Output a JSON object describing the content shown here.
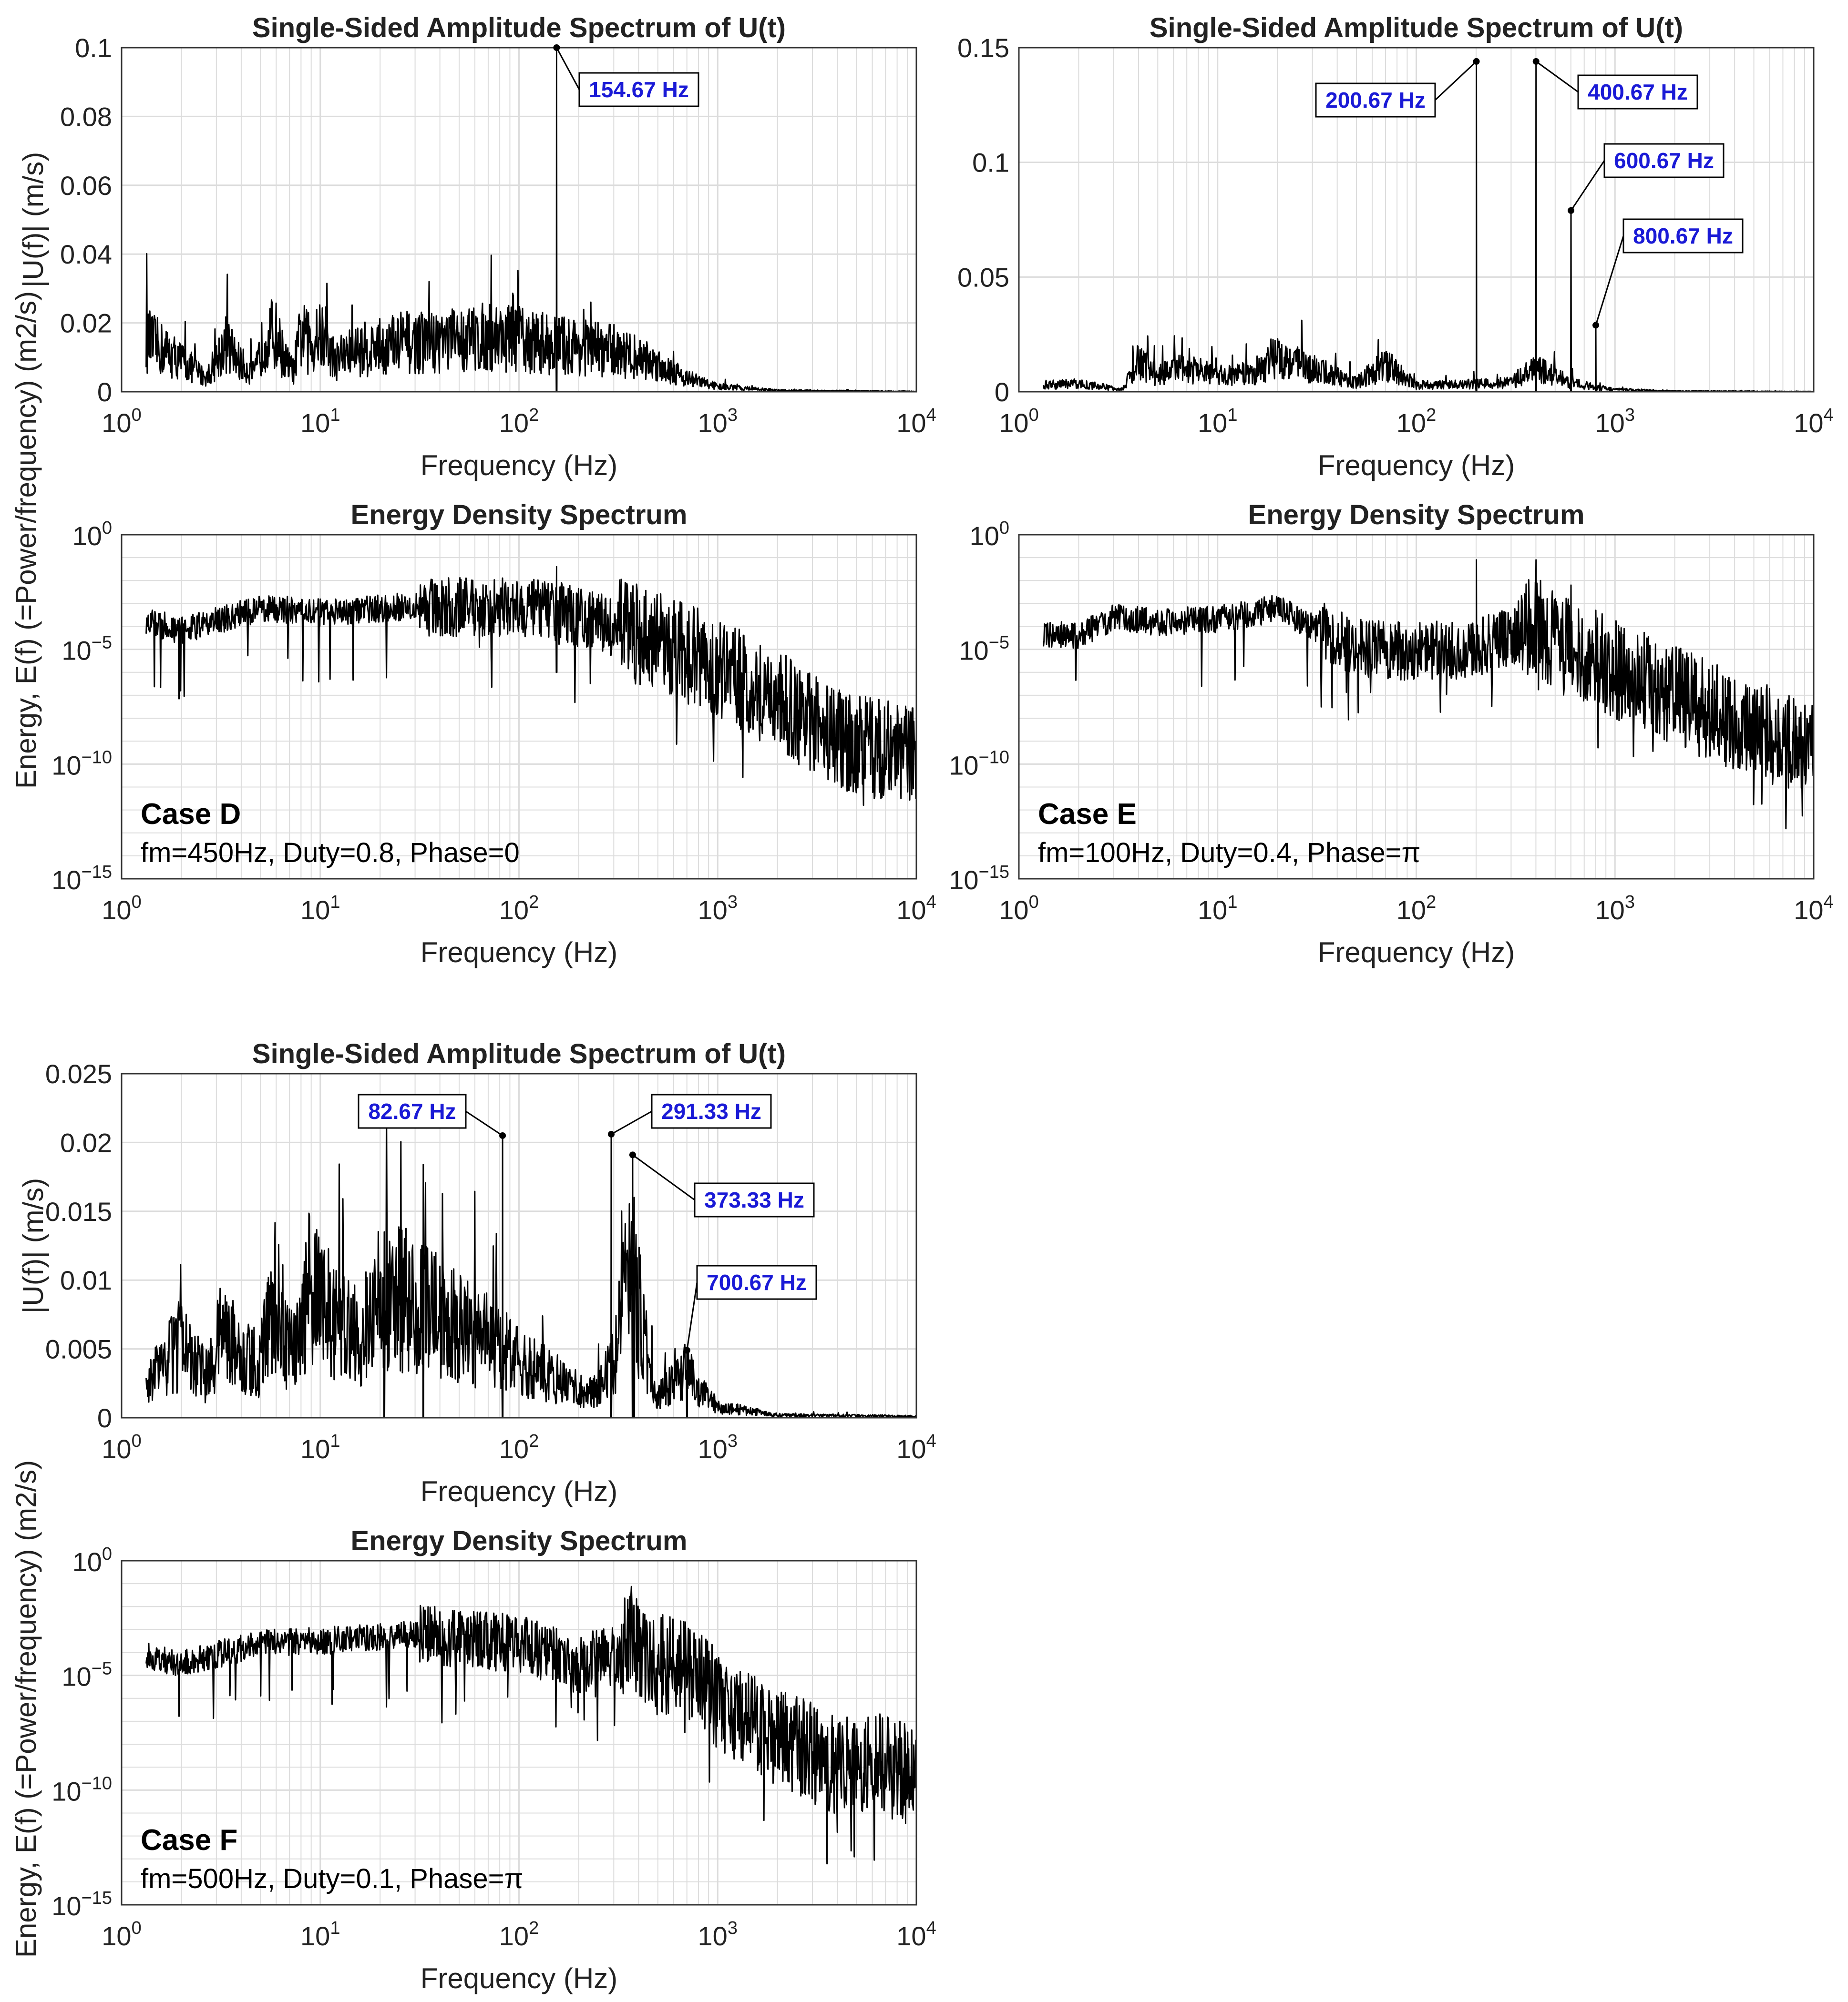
{
  "colors": {
    "trace": "#000000",
    "grid": "#dcdcdc",
    "annotation_text": "#1a1ad6",
    "axes": "#333333"
  },
  "chart_data": [
    {
      "id": "D-amp",
      "type": "line",
      "scale": "semilogx",
      "title": "Single-Sided Amplitude Spectrum of U(t)",
      "xlabel": "Frequency (Hz)",
      "ylabel": "|U(f)| (m/s)",
      "xlim": [
        1,
        10000
      ],
      "ylim": [
        0,
        0.1
      ],
      "yticks": [
        "0",
        "0.02",
        "0.04",
        "0.06",
        "0.08",
        "0.1"
      ],
      "xticks": [
        "10^0",
        "10^1",
        "10^2",
        "10^3",
        "10^4"
      ],
      "series": [
        {
          "name": "|U(f)|",
          "profile": [
            [
              1.33,
              0.015
            ],
            [
              2,
              0.009
            ],
            [
              2.67,
              0.004
            ],
            [
              3.33,
              0.014
            ],
            [
              4,
              0.008
            ],
            [
              4.67,
              0.005
            ],
            [
              5.33,
              0.017
            ],
            [
              6,
              0.016
            ],
            [
              6.67,
              0.009
            ],
            [
              7.33,
              0.006
            ],
            [
              8,
              0.017
            ],
            [
              9,
              0.013
            ],
            [
              10,
              0.016
            ],
            [
              12,
              0.009
            ],
            [
              15,
              0.012
            ],
            [
              20,
              0.013
            ],
            [
              30,
              0.014
            ],
            [
              50,
              0.015
            ],
            [
              80,
              0.016
            ],
            [
              100,
              0.015
            ],
            [
              140,
              0.014
            ],
            [
              200,
              0.013
            ],
            [
              300,
              0.012
            ],
            [
              500,
              0.008
            ],
            [
              700,
              0.004
            ],
            [
              1000,
              0.0015
            ],
            [
              2000,
              0.0004
            ],
            [
              10000,
              0.0001
            ]
          ]
        }
      ],
      "peaks": [
        {
          "freq": 154.67,
          "amp": 0.1
        }
      ],
      "annotations": [
        {
          "label": "154.67 Hz",
          "freq": 154.67,
          "value": 0.1
        }
      ]
    },
    {
      "id": "E-amp",
      "type": "line",
      "scale": "semilogx",
      "title": "Single-Sided Amplitude Spectrum of U(t)",
      "xlabel": "Frequency (Hz)",
      "ylabel": "",
      "xlim": [
        1,
        10000
      ],
      "ylim": [
        0,
        0.15
      ],
      "yticks": [
        "0",
        "0.05",
        "0.1",
        "0.15"
      ],
      "xticks": [
        "10^0",
        "10^1",
        "10^2",
        "10^3",
        "10^4"
      ],
      "series": [
        {
          "name": "|U(f)|",
          "profile": [
            [
              1.33,
              0.003
            ],
            [
              2,
              0.0035
            ],
            [
              3.33,
              0.001
            ],
            [
              4,
              0.013
            ],
            [
              5,
              0.007
            ],
            [
              6,
              0.01
            ],
            [
              8,
              0.009
            ],
            [
              10,
              0.007
            ],
            [
              15,
              0.008
            ],
            [
              20,
              0.016
            ],
            [
              30,
              0.01
            ],
            [
              50,
              0.004
            ],
            [
              70,
              0.012
            ],
            [
              100,
              0.003
            ],
            [
              150,
              0.003
            ],
            [
              300,
              0.004
            ],
            [
              400,
              0.01
            ],
            [
              600,
              0.004
            ],
            [
              800,
              0.002
            ],
            [
              1000,
              0.001
            ],
            [
              2000,
              0.0003
            ],
            [
              10000,
              0.0001
            ]
          ]
        }
      ],
      "peaks": [
        {
          "freq": 200.67,
          "amp": 0.144
        },
        {
          "freq": 400.67,
          "amp": 0.144
        },
        {
          "freq": 600.67,
          "amp": 0.079
        },
        {
          "freq": 800.67,
          "amp": 0.029
        }
      ],
      "annotations": [
        {
          "label": "200.67 Hz",
          "freq": 200.67,
          "value": 0.144
        },
        {
          "label": "400.67 Hz",
          "freq": 400.67,
          "value": 0.144
        },
        {
          "label": "600.67 Hz",
          "freq": 600.67,
          "value": 0.079
        },
        {
          "label": "800.67 Hz",
          "freq": 800.67,
          "value": 0.029
        }
      ]
    },
    {
      "id": "D-eng",
      "type": "line",
      "scale": "loglog",
      "title": "Energy Density Spectrum",
      "xlabel": "Frequency (Hz)",
      "ylabel": "Energy, E(f) (=Power/frequency) (m2/s)",
      "xlim": [
        1,
        10000
      ],
      "ylim_log10": [
        -15,
        0
      ],
      "yticks": [
        "10^-15",
        "10^-10",
        "10^-5",
        "10^0"
      ],
      "xticks": [
        "10^0",
        "10^1",
        "10^2",
        "10^3",
        "10^4"
      ],
      "series": [
        {
          "name": "E(f)",
          "profile_log10": [
            [
              1,
              -3.4
            ],
            [
              2,
              -4.2
            ],
            [
              5,
              -3.2
            ],
            [
              10,
              -3.4
            ],
            [
              30,
              -3.1
            ],
            [
              100,
              -3.2
            ],
            [
              150,
              -3.3
            ],
            [
              200,
              -3.6
            ],
            [
              500,
              -4.6
            ],
            [
              1000,
              -5.8
            ],
            [
              2000,
              -7.2
            ],
            [
              3000,
              -8.3
            ],
            [
              5000,
              -9.2
            ],
            [
              10000,
              -9.6
            ]
          ]
        }
      ],
      "peaks": [
        {
          "freq": 154.67,
          "log10": -1.4
        }
      ],
      "case_label": "Case D",
      "case_info": "fm=450Hz, Duty=0.8, Phase=0"
    },
    {
      "id": "E-eng",
      "type": "line",
      "scale": "loglog",
      "title": "Energy Density Spectrum",
      "xlabel": "Frequency (Hz)",
      "ylabel": "",
      "xlim": [
        1,
        10000
      ],
      "ylim_log10": [
        -15,
        0
      ],
      "yticks": [
        "10^-15",
        "10^-10",
        "10^-5",
        "10^0"
      ],
      "xticks": [
        "10^0",
        "10^1",
        "10^2",
        "10^3",
        "10^4"
      ],
      "series": [
        {
          "name": "E(f)",
          "profile_log10": [
            [
              1,
              -4.3
            ],
            [
              2,
              -4.4
            ],
            [
              3,
              -3.6
            ],
            [
              5,
              -3.8
            ],
            [
              10,
              -3.7
            ],
            [
              20,
              -3.2
            ],
            [
              30,
              -4.0
            ],
            [
              50,
              -4.9
            ],
            [
              100,
              -5.1
            ],
            [
              200,
              -5.0
            ],
            [
              400,
              -4.0
            ],
            [
              600,
              -5.0
            ],
            [
              1000,
              -5.9
            ],
            [
              2000,
              -7.0
            ],
            [
              5000,
              -8.6
            ],
            [
              10000,
              -9.2
            ]
          ]
        }
      ],
      "peaks": [
        {
          "freq": 200.67,
          "log10": -1.1
        },
        {
          "freq": 400.67,
          "log10": -1.1
        },
        {
          "freq": 600.67,
          "log10": -2.2
        },
        {
          "freq": 800.67,
          "log10": -3.3
        }
      ],
      "case_label": "Case E",
      "case_info": "fm=100Hz, Duty=0.4, Phase=π"
    },
    {
      "id": "F-amp",
      "type": "line",
      "scale": "semilogx",
      "title": "Single-Sided Amplitude Spectrum of U(t)",
      "xlabel": "Frequency (Hz)",
      "ylabel": "|U(f)| (m/s)",
      "xlim": [
        1,
        10000
      ],
      "ylim": [
        0,
        0.025
      ],
      "yticks": [
        "0",
        "0.005",
        "0.01",
        "0.015",
        "0.02",
        "0.025"
      ],
      "xticks": [
        "10^0",
        "10^1",
        "10^2",
        "10^3",
        "10^4"
      ],
      "series": [
        {
          "name": "|U(f)|",
          "profile": [
            [
              1.33,
              0.0023
            ],
            [
              2,
              0.0054
            ],
            [
              2.67,
              0.003
            ],
            [
              3.33,
              0.0068
            ],
            [
              4,
              0.0045
            ],
            [
              5,
              0.004
            ],
            [
              6,
              0.009
            ],
            [
              7,
              0.005
            ],
            [
              8,
              0.006
            ],
            [
              9,
              0.01
            ],
            [
              10,
              0.008
            ],
            [
              15,
              0.006
            ],
            [
              20,
              0.008
            ],
            [
              30,
              0.009
            ],
            [
              40,
              0.007
            ],
            [
              60,
              0.006
            ],
            [
              80,
              0.005
            ],
            [
              100,
              0.004
            ],
            [
              150,
              0.003
            ],
            [
              200,
              0.002
            ],
            [
              250,
              0.002
            ],
            [
              300,
              0.004
            ],
            [
              350,
              0.01
            ],
            [
              400,
              0.008
            ],
            [
              450,
              0.003
            ],
            [
              500,
              0.0015
            ],
            [
              600,
              0.0025
            ],
            [
              700,
              0.0035
            ],
            [
              800,
              0.002
            ],
            [
              1000,
              0.0008
            ],
            [
              2000,
              0.0002
            ],
            [
              10000,
              0.0001
            ]
          ]
        }
      ],
      "peaks": [
        {
          "freq": 33,
          "amp": 0.0184
        },
        {
          "freq": 21,
          "amp": 0.0135
        },
        {
          "freq": 82.67,
          "amp": 0.0205
        },
        {
          "freq": 291.33,
          "amp": 0.0206
        },
        {
          "freq": 373.33,
          "amp": 0.0191
        },
        {
          "freq": 380,
          "amp": 0.016
        },
        {
          "freq": 700.67,
          "amp": 0.0049
        }
      ],
      "annotations": [
        {
          "label": "82.67 Hz",
          "freq": 82.67,
          "value": 0.0205
        },
        {
          "label": "291.33 Hz",
          "freq": 291.33,
          "value": 0.0206
        },
        {
          "label": "373.33 Hz",
          "freq": 373.33,
          "value": 0.0191
        },
        {
          "label": "700.67 Hz",
          "freq": 700.67,
          "value": 0.0049
        }
      ]
    },
    {
      "id": "F-eng",
      "type": "line",
      "scale": "loglog",
      "title": "Energy Density Spectrum",
      "xlabel": "Frequency (Hz)",
      "ylabel": "Energy, E(f) (=Power/frequency) (m2/s)",
      "xlim": [
        1,
        10000
      ],
      "ylim_log10": [
        -15,
        0
      ],
      "yticks": [
        "10^-15",
        "10^-10",
        "10^-5",
        "10^0"
      ],
      "xticks": [
        "10^0",
        "10^1",
        "10^2",
        "10^3",
        "10^4"
      ],
      "series": [
        {
          "name": "E(f)",
          "profile_log10": [
            [
              1,
              -3.9
            ],
            [
              2,
              -4.5
            ],
            [
              5,
              -3.6
            ],
            [
              10,
              -3.5
            ],
            [
              30,
              -3.2
            ],
            [
              100,
              -3.6
            ],
            [
              200,
              -4.5
            ],
            [
              300,
              -4.1
            ],
            [
              370,
              -3.2
            ],
            [
              450,
              -4.5
            ],
            [
              600,
              -4.6
            ],
            [
              800,
              -5.0
            ],
            [
              1000,
              -6.2
            ],
            [
              2000,
              -7.7
            ],
            [
              4000,
              -8.9
            ],
            [
              6000,
              -8.7
            ],
            [
              10000,
              -9.5
            ]
          ]
        }
      ],
      "peaks": [],
      "case_label": "Case F",
      "case_info": "fm=500Hz, Duty=0.1, Phase=π"
    }
  ]
}
